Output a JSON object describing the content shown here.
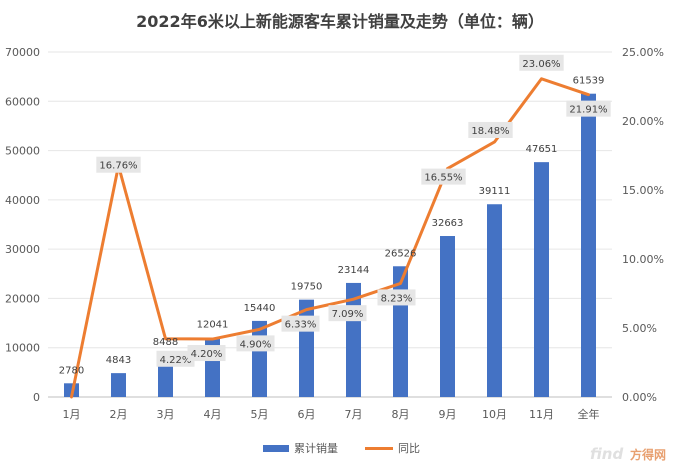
{
  "chart_data": {
    "type": "bar+line",
    "title": "2022年6米以上新能源客车累计销量及走势（单位：辆）",
    "categories": [
      "1月",
      "2月",
      "3月",
      "4月",
      "5月",
      "6月",
      "7月",
      "8月",
      "9月",
      "10月",
      "11月",
      "全年"
    ],
    "series": [
      {
        "name": "累计销量",
        "type": "bar",
        "axis": "left",
        "color": "#4472C4",
        "values": [
          2780,
          4843,
          8488,
          12041,
          15440,
          19750,
          23144,
          26526,
          32663,
          39111,
          47651,
          61539
        ]
      },
      {
        "name": "同比",
        "type": "line",
        "axis": "right",
        "color": "#ED7D31",
        "values": [
          0.0,
          16.76,
          4.22,
          4.2,
          4.9,
          6.33,
          7.09,
          8.23,
          16.55,
          18.48,
          23.06,
          21.91
        ],
        "labels": [
          "",
          "16.76%",
          "4.22%",
          "4.20%",
          "4.90%",
          "6.33%",
          "7.09%",
          "8.23%",
          "16.55%",
          "18.48%",
          "23.06%",
          "21.91%"
        ]
      }
    ],
    "y_left": {
      "min": 0,
      "max": 70000,
      "step": 10000,
      "ticks": [
        "0",
        "10000",
        "20000",
        "30000",
        "40000",
        "50000",
        "60000",
        "70000"
      ]
    },
    "y_right": {
      "min": 0,
      "max": 25,
      "step": 5,
      "ticks": [
        "0.00%",
        "5.00%",
        "10.00%",
        "15.00%",
        "20.00%",
        "25.00%"
      ]
    },
    "grid": true,
    "legend": "bottom-center"
  },
  "watermark": {
    "brand": "find",
    "text": "方得网"
  }
}
